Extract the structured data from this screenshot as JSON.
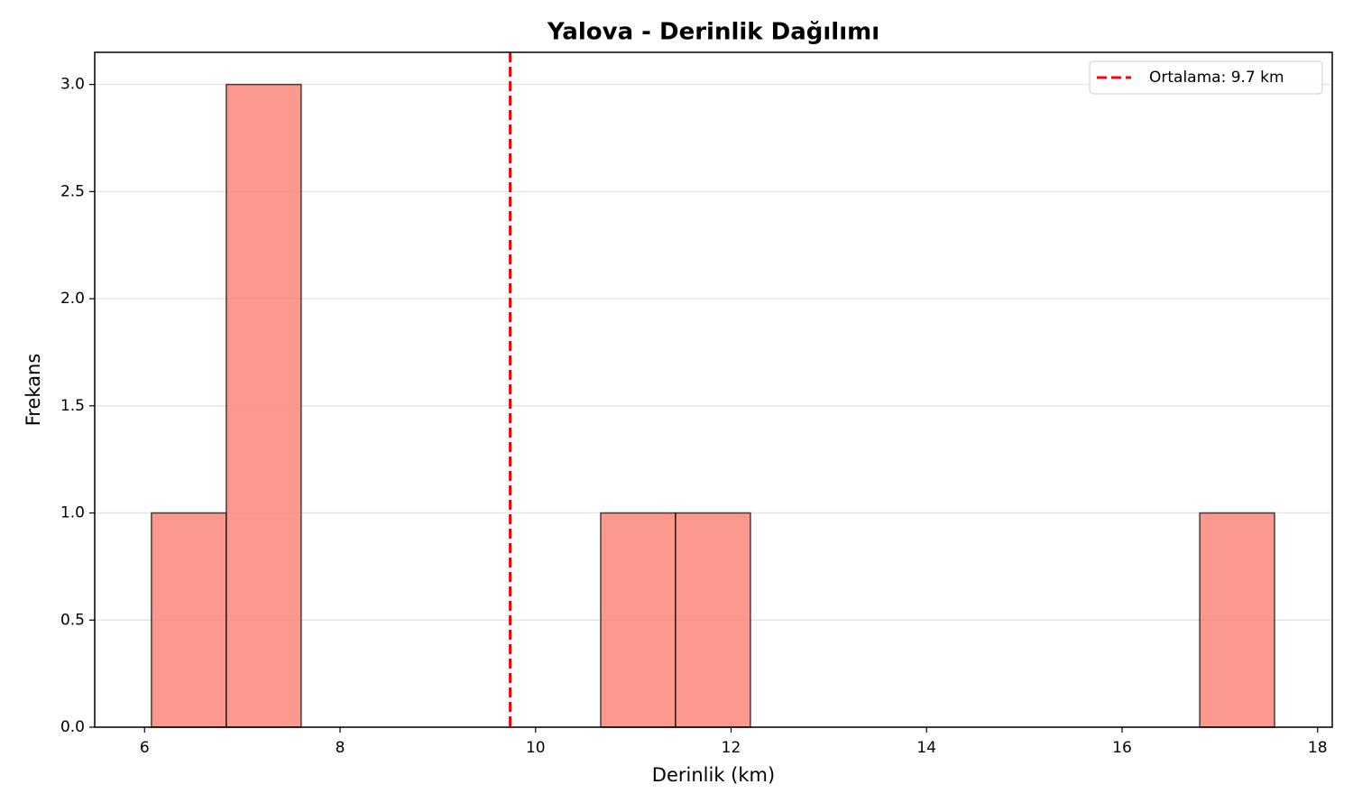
{
  "chart_data": {
    "type": "histogram",
    "title": "Yalova - Derinlik Dağılımı",
    "x_label": "Derinlik (km)",
    "y_label": "Frekans",
    "bins": [
      6.07,
      6.836,
      7.602,
      8.368,
      9.134,
      9.9,
      10.666,
      11.432,
      12.198,
      12.964,
      13.73,
      14.496,
      15.262,
      16.028,
      16.794,
      17.56
    ],
    "values": [
      1,
      3,
      0,
      0,
      0,
      0,
      1,
      1,
      0,
      0,
      0,
      0,
      0,
      0,
      1
    ],
    "color": "#fa8072",
    "xlim": [
      5.49,
      18.15
    ],
    "xticks": [
      6,
      8,
      10,
      12,
      14,
      16,
      18
    ],
    "ylim": [
      0,
      3.15
    ],
    "yticks": [
      {
        "value": 0,
        "label": "0.0"
      },
      0.5,
      {
        "value": 1,
        "label": "1.0"
      },
      1.5,
      {
        "value": 2,
        "label": "2.0"
      },
      2.5,
      {
        "value": 3,
        "label": "3.0"
      }
    ],
    "grid": "y",
    "vline": {
      "value": 9.74,
      "label": "Ortalama: 9.7 km",
      "color": "#ff0000"
    },
    "legend": "upper right"
  }
}
